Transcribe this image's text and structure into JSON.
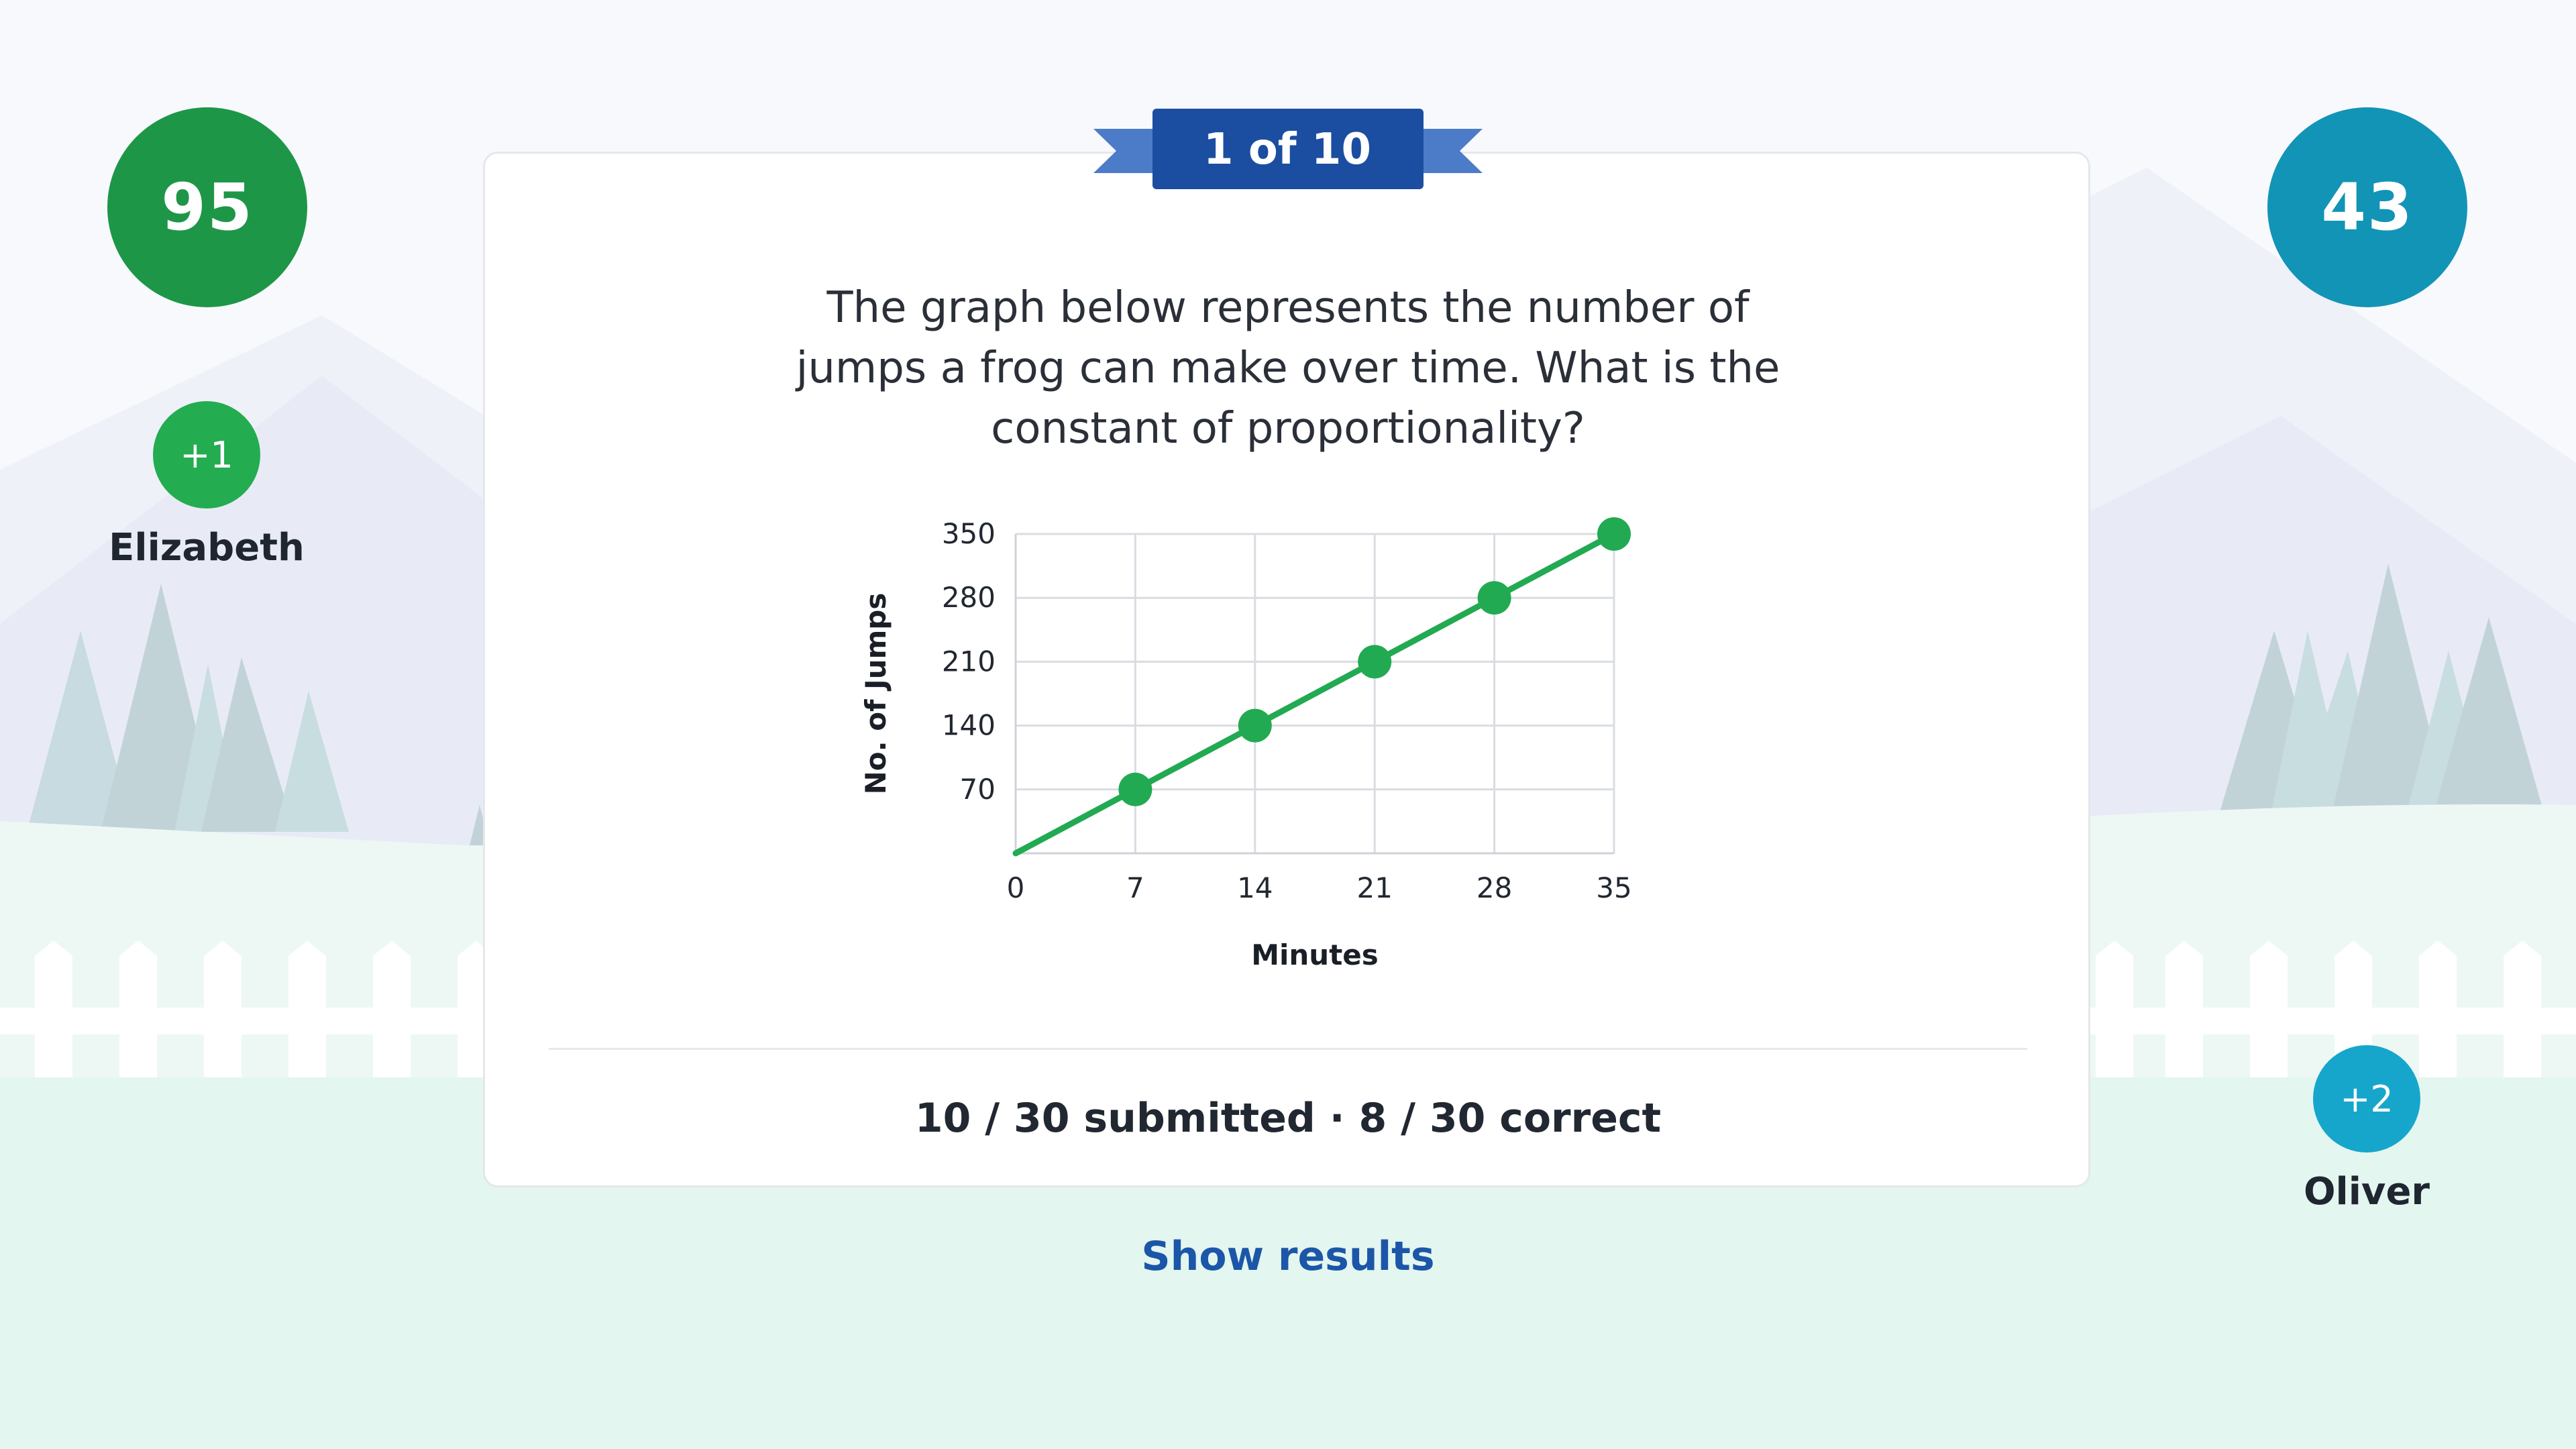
{
  "colors": {
    "green_score": "#1e9648",
    "blue_score": "#1294b6",
    "plus_green": "#24ac51",
    "plus_blue": "#16a6cc",
    "banner": "#1b4ea0",
    "line": "#22aa52",
    "link": "#1b56a8"
  },
  "players": {
    "left": {
      "score": "95",
      "plus": "+1",
      "name": "Elizabeth"
    },
    "right": {
      "score": "43",
      "plus": "+2",
      "name": "Oliver"
    }
  },
  "question": {
    "counter": "1 of 10",
    "text": "The graph below represents the number of jumps a frog can make over time. What is the constant of proportionality?"
  },
  "chart_data": {
    "type": "line",
    "x": [
      0,
      7,
      14,
      21,
      28,
      35
    ],
    "y": [
      0,
      70,
      140,
      210,
      280,
      350
    ],
    "marked_points": [
      [
        7,
        70
      ],
      [
        14,
        140
      ],
      [
        21,
        210
      ],
      [
        28,
        280
      ],
      [
        35,
        350
      ]
    ],
    "xlabel": "Minutes",
    "ylabel": "No. of Jumps",
    "x_ticks": [
      0,
      7,
      14,
      21,
      28,
      35
    ],
    "y_ticks": [
      70,
      140,
      210,
      280,
      350
    ],
    "xlim": [
      0,
      35
    ],
    "ylim": [
      0,
      350
    ],
    "grid": true
  },
  "stats": {
    "text": "10 / 30 submitted  ·  8 / 30 correct"
  },
  "actions": {
    "show_results": "Show results"
  }
}
